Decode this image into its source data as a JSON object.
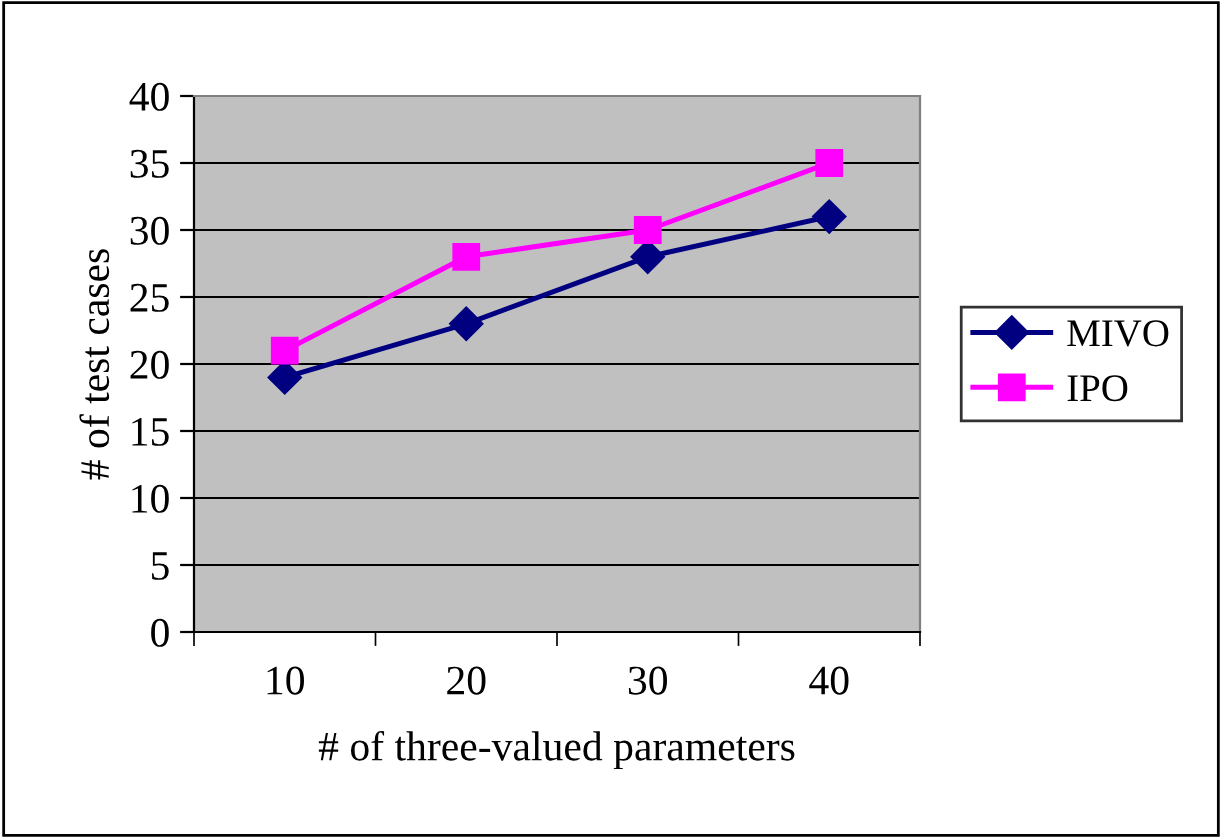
{
  "chart_data": {
    "type": "line",
    "xlabel": "# of three-valued parameters",
    "ylabel": "# of test cases",
    "categories": [
      "10",
      "20",
      "30",
      "40"
    ],
    "series": [
      {
        "name": "MIVO",
        "color": "#000080",
        "marker": "diamond",
        "values": [
          19,
          23,
          28,
          31
        ]
      },
      {
        "name": "IPO",
        "color": "#ff00ff",
        "marker": "square",
        "values": [
          21,
          28,
          30,
          35
        ]
      }
    ],
    "ylim": [
      0,
      40
    ],
    "yticks": [
      0,
      5,
      10,
      15,
      20,
      25,
      30,
      35,
      40
    ],
    "grid": "y",
    "legend": "right",
    "line_style": "solid"
  }
}
